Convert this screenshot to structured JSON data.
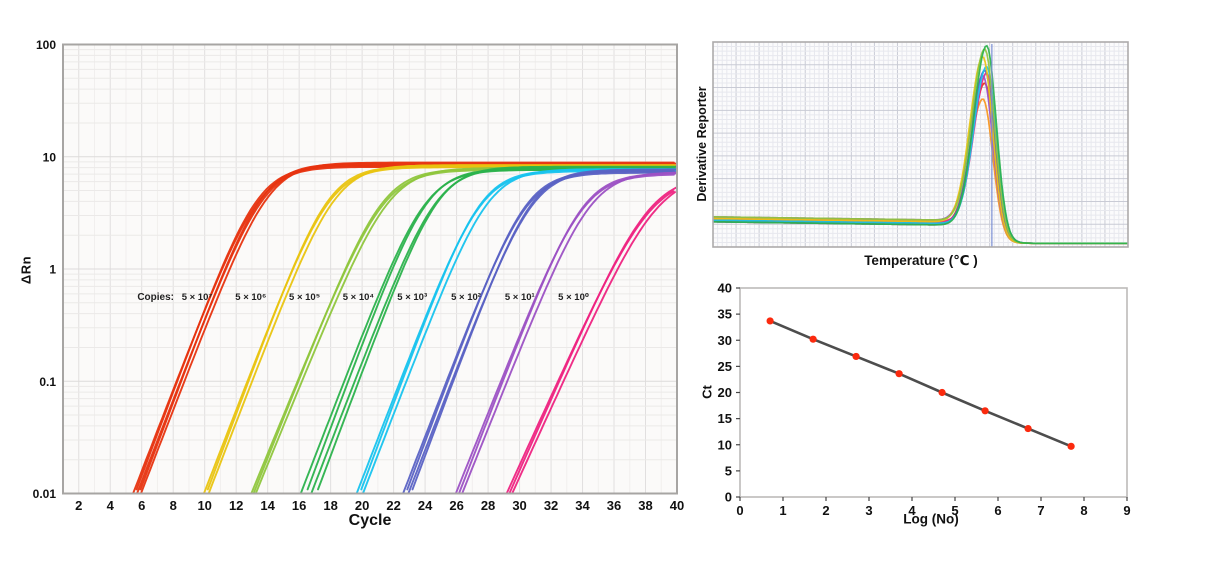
{
  "figure": {
    "amp_xlabel": "Cycle",
    "amp_ylabel": "ΔRn",
    "melt_xlabel": "Temperature (℃ )",
    "melt_ylabel": "Derivative Reporter",
    "std_xlabel": "Log (No)",
    "std_ylabel": "Ct"
  },
  "chart_data": [
    {
      "id": "amplification",
      "type": "line",
      "title": "",
      "xlabel": "Cycle",
      "ylabel": "ΔRn",
      "x_scale": "linear",
      "y_scale": "log",
      "xlim": [
        1,
        40
      ],
      "ylim": [
        0.01,
        100
      ],
      "x_ticks": [
        2,
        4,
        6,
        8,
        10,
        12,
        14,
        16,
        18,
        20,
        22,
        24,
        26,
        28,
        30,
        32,
        34,
        36,
        38,
        40
      ],
      "y_ticks": [
        {
          "value": 100,
          "label": "100"
        },
        {
          "value": 10,
          "label": "10"
        },
        {
          "value": 1,
          "label": "1"
        },
        {
          "value": 0.1,
          "label": "0.1"
        },
        {
          "value": 0.01,
          "label": "0.01"
        }
      ],
      "grid": true,
      "annotation_prefix": "Copies:",
      "series": [
        {
          "label": "5 × 10⁷",
          "color": "#e7330f",
          "cross_cycle": 5.7,
          "plateau": 8.5,
          "rate": 0.85,
          "replicates": 5,
          "spread": 0.5
        },
        {
          "label": "5 × 10⁶",
          "color": "#e9c410",
          "cross_cycle": 10.1,
          "plateau": 8.25,
          "rate": 0.85,
          "replicates": 3,
          "spread": 0.3
        },
        {
          "label": "5 × 10⁵",
          "color": "#8fc63d",
          "cross_cycle": 13.1,
          "plateau": 7.8,
          "rate": 0.8,
          "replicates": 3,
          "spread": 0.28
        },
        {
          "label": "5 × 10⁴",
          "color": "#2bb24c",
          "cross_cycle": 16.6,
          "plateau": 7.9,
          "rate": 0.85,
          "replicates": 4,
          "spread": 1.0
        },
        {
          "label": "5 × 10³",
          "color": "#17c3ee",
          "cross_cycle": 19.85,
          "plateau": 7.6,
          "rate": 0.85,
          "replicates": 3,
          "spread": 0.4
        },
        {
          "label": "5 × 10²",
          "color": "#5a62c4",
          "cross_cycle": 22.85,
          "plateau": 7.45,
          "rate": 0.85,
          "replicates": 4,
          "spread": 0.5
        },
        {
          "label": "5 × 10¹",
          "color": "#9c51c4",
          "cross_cycle": 26.15,
          "plateau": 7.15,
          "rate": 0.82,
          "replicates": 3,
          "spread": 0.4
        },
        {
          "label": "5 × 10⁰",
          "color": "#ee2381",
          "cross_cycle": 29.35,
          "plateau": 6.9,
          "rate": 0.72,
          "replicates": 3,
          "spread": 0.35
        }
      ]
    },
    {
      "id": "melt_curve",
      "type": "line",
      "title": "",
      "xlabel": "Temperature (℃ )",
      "ylabel": "Derivative Reporter",
      "grid": true,
      "x_tick_labels": [],
      "y_tick_labels": [],
      "peak_position_frac": 0.655,
      "marker_line_frac": 0.672,
      "marker_line_color": "#7b8fd4",
      "baseline_frac": 0.135,
      "series": [
        {
          "color": "#f7941d",
          "peak_height_frac": 0.73
        },
        {
          "color": "#e7330f",
          "peak_height_frac": 0.8
        },
        {
          "color": "#ee2381",
          "peak_height_frac": 0.84
        },
        {
          "color": "#9c51c4",
          "peak_height_frac": 0.82
        },
        {
          "color": "#5a62c4",
          "peak_height_frac": 0.87
        },
        {
          "color": "#17c3ee",
          "peak_height_frac": 0.88
        },
        {
          "color": "#e9c410",
          "peak_height_frac": 0.92
        },
        {
          "color": "#8fc63d",
          "peak_height_frac": 0.95
        },
        {
          "color": "#2bb24c",
          "peak_height_frac": 0.99
        }
      ]
    },
    {
      "id": "standard_curve",
      "type": "scatter",
      "title": "",
      "xlabel": "Log (No)",
      "ylabel": "Ct",
      "xlim": [
        0,
        9
      ],
      "ylim": [
        0,
        40
      ],
      "x_ticks": [
        0,
        1,
        2,
        3,
        4,
        5,
        6,
        7,
        8,
        9
      ],
      "y_ticks": [
        0,
        5,
        10,
        15,
        20,
        25,
        30,
        35,
        40
      ],
      "grid": false,
      "x": [
        0.7,
        1.7,
        2.7,
        3.7,
        4.7,
        5.7,
        6.7,
        7.7
      ],
      "y": [
        33.7,
        30.2,
        26.9,
        23.6,
        20.0,
        16.5,
        13.1,
        9.7
      ],
      "point_color": "#fb2a0e",
      "line_color": "#4d4d4d"
    }
  ]
}
